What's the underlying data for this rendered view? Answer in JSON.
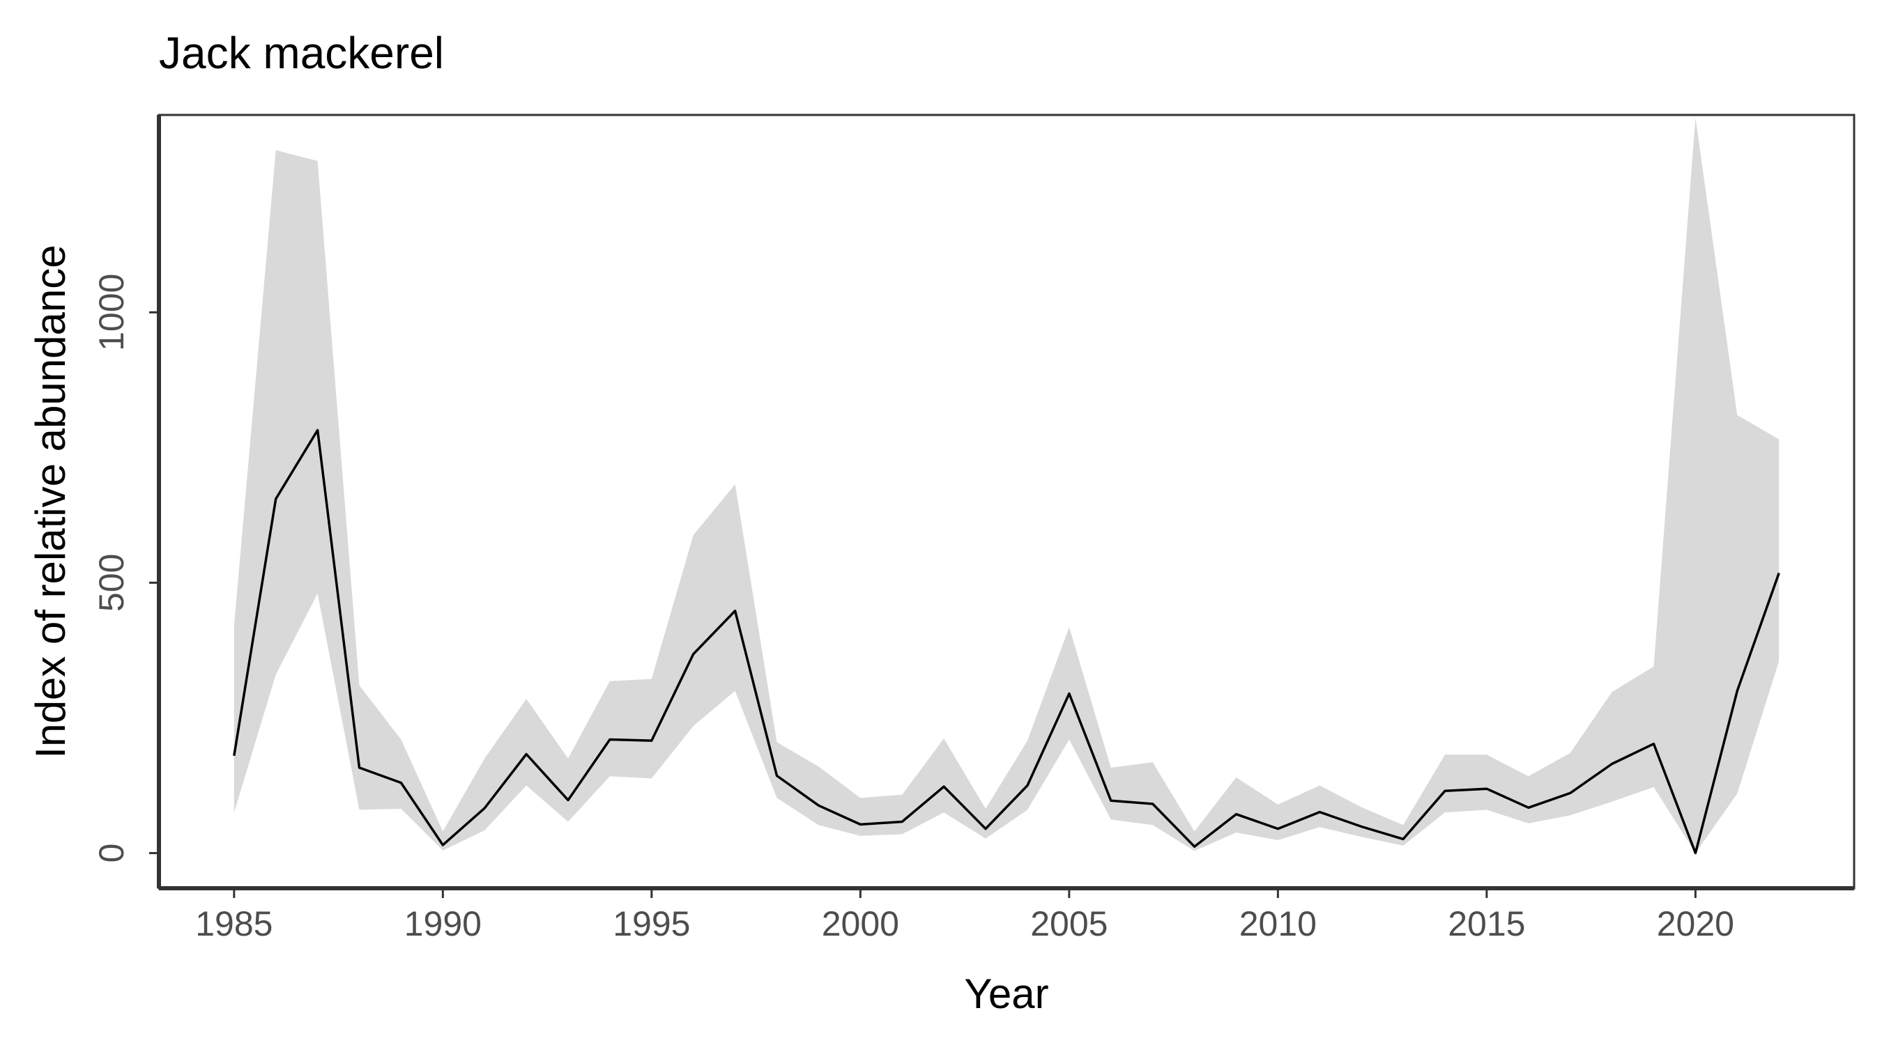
{
  "chart_data": {
    "type": "line",
    "title": "Jack mackerel",
    "xlabel": "Year",
    "ylabel": "Index of relative abundance",
    "xlim": [
      1983.2,
      2023.8
    ],
    "ylim": [
      -65,
      1365
    ],
    "x_ticks": [
      1985,
      1990,
      1995,
      2000,
      2005,
      2010,
      2015,
      2020
    ],
    "y_ticks": [
      0,
      500,
      1000
    ],
    "grid": false,
    "legend": "none",
    "colors": {
      "line": "#000000",
      "band": "#d9d9d9",
      "axis": "#333333",
      "tick_text": "#4d4d4d"
    },
    "series": [
      {
        "x": [
          1985,
          1986,
          1987,
          1988,
          1989,
          1990,
          1991,
          1992,
          1993,
          1994,
          1995,
          1996,
          1997,
          1998,
          1999,
          2000,
          2001,
          2002,
          2003,
          2004,
          2005,
          2006,
          2007,
          2008,
          2009,
          2010,
          2011,
          2012,
          2013,
          2014,
          2015,
          2016,
          2017,
          2018,
          2019,
          2020,
          2021,
          2022
        ],
        "y": [
          180,
          655,
          782,
          158,
          130,
          15,
          83,
          183,
          98,
          210,
          208,
          368,
          448,
          143,
          88,
          53,
          58,
          123,
          45,
          125,
          295,
          97,
          91,
          12,
          72,
          45,
          76,
          49,
          26,
          115,
          119,
          84,
          111,
          165,
          202,
          0,
          300,
          518
        ],
        "lower": [
          75,
          330,
          480,
          80,
          82,
          5,
          42,
          125,
          58,
          142,
          138,
          235,
          300,
          102,
          52,
          32,
          35,
          75,
          27,
          80,
          210,
          62,
          52,
          4,
          38,
          24,
          48,
          30,
          14,
          75,
          80,
          55,
          70,
          95,
          122,
          0,
          110,
          355
        ],
        "upper": [
          420,
          1300,
          1280,
          310,
          210,
          40,
          175,
          285,
          175,
          318,
          322,
          588,
          682,
          205,
          160,
          102,
          108,
          212,
          82,
          208,
          418,
          158,
          168,
          40,
          140,
          90,
          125,
          85,
          52,
          182,
          182,
          142,
          185,
          298,
          345,
          1360,
          810,
          765
        ]
      }
    ]
  }
}
